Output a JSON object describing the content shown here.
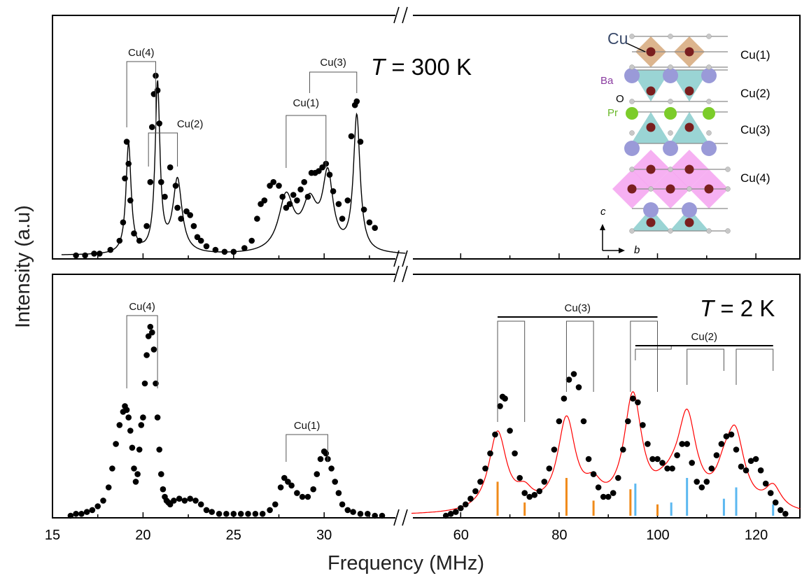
{
  "figure": {
    "ylabel": "Intensity (a.u)",
    "xlabel": "Frequency (MHz)",
    "top_panel_label": {
      "symbol": "T",
      "rest": " = 300 K"
    },
    "bottom_panel_label": {
      "symbol": "T",
      "rest": " = 2 K"
    },
    "x_ticks_left": [
      "15",
      "20",
      "25",
      "30"
    ],
    "x_ticks_right": [
      "60",
      "80",
      "100",
      "120"
    ],
    "inset": {
      "labels": {
        "cu": "Cu",
        "ba": "Ba",
        "o": "O",
        "pr": "Pr",
        "c_axis": "c",
        "b_axis": "b"
      },
      "layers": [
        "Cu(1)",
        "Cu(2)",
        "Cu(3)",
        "Cu(4)"
      ]
    },
    "colors": {
      "data": "#000000",
      "fit_300K": "#000000",
      "fit_2K": "#ff0000",
      "cu3_sticks": "#f08a1a",
      "cu2_sticks": "#5bb8f0",
      "cu_atom": "#7a1f1f",
      "ba_atom": "#9a9ad8",
      "pr_atom": "#7ccc2a",
      "o_atom": "#c8c8c8",
      "cu_polyhedra": "#d6a87a",
      "cu2_polyhedra": "#8fcfcf",
      "cu4_polyhedra": "#f4a2f0",
      "ba_label": "#8a3ca0",
      "pr_label": "#6ab82a",
      "cu_label": "#3a4a6a"
    }
  },
  "chart_data": [
    {
      "type": "scatter",
      "panel": "top",
      "temperature_label": "T = 300 K",
      "xlabel": "Frequency (MHz)",
      "ylabel": "Intensity (a.u)",
      "xlim": [
        15,
        35
      ],
      "ylim": [
        0,
        1.05
      ],
      "y_units": "arbitrary",
      "series": [
        {
          "kind": "points",
          "x": [
            16.3,
            16.8,
            17.3,
            17.6,
            18.2,
            18.7,
            18.9,
            19.0,
            19.1,
            19.2,
            19.3,
            19.5,
            19.8,
            20.2,
            20.4,
            20.5,
            20.6,
            20.7,
            20.8,
            20.9,
            21.0,
            21.2,
            21.5,
            21.8,
            21.9,
            22.1,
            22.4,
            22.6,
            22.8,
            23.0,
            23.2,
            23.5,
            24.0,
            24.5,
            25.0,
            25.6,
            26.0,
            26.3,
            26.5,
            26.7,
            27.0,
            27.2,
            27.5,
            27.7,
            27.9,
            28.1,
            28.3,
            28.5,
            28.7,
            28.9,
            29.1,
            29.3,
            29.5,
            29.7,
            29.9,
            30.1,
            30.3,
            30.5,
            30.8,
            31.0,
            31.3,
            31.5,
            31.7,
            31.8,
            32.0,
            32.2,
            32.5,
            32.8
          ],
          "y": [
            0.0,
            0.0,
            0.01,
            0.01,
            0.03,
            0.08,
            0.18,
            0.42,
            0.62,
            0.5,
            0.3,
            0.12,
            0.08,
            0.16,
            0.4,
            0.7,
            0.88,
            0.98,
            0.9,
            0.72,
            0.4,
            0.32,
            0.48,
            0.38,
            0.26,
            0.2,
            0.24,
            0.22,
            0.16,
            0.1,
            0.08,
            0.05,
            0.03,
            0.02,
            0.02,
            0.04,
            0.08,
            0.2,
            0.28,
            0.3,
            0.38,
            0.4,
            0.38,
            0.32,
            0.26,
            0.28,
            0.33,
            0.3,
            0.36,
            0.4,
            0.32,
            0.45,
            0.45,
            0.46,
            0.48,
            0.5,
            0.44,
            0.35,
            0.28,
            0.2,
            0.3,
            0.65,
            0.82,
            0.84,
            0.62,
            0.25,
            0.18,
            0.15
          ]
        },
        {
          "kind": "fit_line",
          "peaks": [
            {
              "center": 19.2,
              "amplitude": 0.6,
              "width": 0.17
            },
            {
              "center": 20.8,
              "amplitude": 0.92,
              "width": 0.16
            },
            {
              "center": 21.9,
              "amplitude": 0.4,
              "width": 0.3
            },
            {
              "center": 27.9,
              "amplitude": 0.3,
              "width": 0.5
            },
            {
              "center": 29.2,
              "amplitude": 0.25,
              "width": 0.5
            },
            {
              "center": 30.2,
              "amplitude": 0.4,
              "width": 0.35
            },
            {
              "center": 31.8,
              "amplitude": 0.74,
              "width": 0.22
            }
          ]
        }
      ],
      "assignments": [
        {
          "label": "Cu(4)",
          "lines": [
            19.1,
            20.7
          ]
        },
        {
          "label": "Cu(2)",
          "lines": [
            20.3,
            21.9
          ]
        },
        {
          "label": "Cu(1)",
          "lines": [
            27.9,
            30.1
          ]
        },
        {
          "label": "Cu(3)",
          "lines": [
            29.2,
            31.8
          ]
        }
      ]
    },
    {
      "type": "scatter",
      "panel": "bottom-left",
      "temperature_label": "T = 2 K",
      "xlabel": "Frequency (MHz)",
      "xlim": [
        15,
        35
      ],
      "ylim": [
        0,
        1.05
      ],
      "y_units": "arbitrary",
      "series": [
        {
          "kind": "points",
          "x": [
            16.0,
            16.3,
            16.6,
            16.9,
            17.2,
            17.5,
            17.8,
            18.1,
            18.3,
            18.5,
            18.7,
            18.9,
            19.0,
            19.1,
            19.2,
            19.3,
            19.4,
            19.5,
            19.6,
            19.7,
            19.8,
            19.9,
            20.0,
            20.1,
            20.2,
            20.3,
            20.4,
            20.5,
            20.6,
            20.7,
            20.8,
            20.9,
            21.0,
            21.1,
            21.2,
            21.3,
            21.4,
            21.5,
            21.7,
            22.0,
            22.3,
            22.6,
            22.9,
            23.2,
            23.5,
            23.8,
            24.2,
            24.6,
            25.0,
            25.4,
            25.8,
            26.2,
            26.6,
            27.0,
            27.3,
            27.6,
            27.8,
            28.0,
            28.2,
            28.5,
            28.8,
            29.1,
            29.4,
            29.6,
            29.8,
            30.0,
            30.1,
            30.2,
            30.4,
            30.6,
            30.8,
            31.0,
            31.3,
            31.6,
            32.0,
            32.4,
            32.8,
            33.2
          ],
          "y": [
            0.0,
            0.01,
            0.01,
            0.02,
            0.03,
            0.05,
            0.08,
            0.15,
            0.25,
            0.38,
            0.48,
            0.55,
            0.58,
            0.56,
            0.52,
            0.45,
            0.36,
            0.25,
            0.18,
            0.22,
            0.35,
            0.48,
            0.52,
            0.7,
            0.85,
            0.95,
            1.0,
            0.97,
            0.88,
            0.7,
            0.52,
            0.35,
            0.22,
            0.14,
            0.1,
            0.08,
            0.07,
            0.06,
            0.08,
            0.09,
            0.08,
            0.09,
            0.08,
            0.06,
            0.03,
            0.02,
            0.01,
            0.01,
            0.01,
            0.01,
            0.01,
            0.01,
            0.01,
            0.03,
            0.06,
            0.15,
            0.2,
            0.18,
            0.16,
            0.12,
            0.1,
            0.1,
            0.14,
            0.22,
            0.3,
            0.34,
            0.33,
            0.3,
            0.25,
            0.18,
            0.12,
            0.06,
            0.03,
            0.02,
            0.01,
            0.01,
            0.0,
            0.0
          ]
        }
      ],
      "assignments": [
        {
          "label": "Cu(4)",
          "lines": [
            19.1,
            20.8
          ]
        },
        {
          "label": "Cu(1)",
          "lines": [
            27.9,
            30.2
          ]
        }
      ]
    },
    {
      "type": "scatter",
      "panel": "bottom-right",
      "temperature_label": "T = 2 K",
      "xlabel": "Frequency (MHz)",
      "xlim": [
        50,
        130
      ],
      "ylim": [
        0,
        1.05
      ],
      "y_units": "arbitrary",
      "series": [
        {
          "kind": "points",
          "x": [
            57,
            58,
            59,
            60,
            61,
            62,
            63,
            64,
            65,
            66,
            67,
            68,
            68.5,
            69,
            70,
            71,
            72,
            73,
            74,
            75,
            76,
            77,
            78,
            79,
            80,
            81,
            82,
            83,
            84,
            85,
            86,
            87,
            88,
            89,
            90,
            91,
            92,
            93,
            94,
            95,
            96,
            97,
            98,
            99,
            100,
            101,
            102,
            103,
            104,
            105,
            106,
            107,
            108,
            109,
            110,
            111,
            112,
            113,
            114,
            115,
            116,
            117,
            118,
            119,
            120,
            121,
            122,
            123,
            124,
            125,
            126
          ],
          "y": [
            0.0,
            0.01,
            0.02,
            0.04,
            0.06,
            0.09,
            0.13,
            0.18,
            0.25,
            0.33,
            0.43,
            0.58,
            0.63,
            0.62,
            0.45,
            0.33,
            0.2,
            0.12,
            0.1,
            0.11,
            0.13,
            0.18,
            0.25,
            0.35,
            0.5,
            0.62,
            0.72,
            0.75,
            0.68,
            0.5,
            0.3,
            0.22,
            0.15,
            0.1,
            0.1,
            0.12,
            0.2,
            0.35,
            0.5,
            0.62,
            0.6,
            0.48,
            0.38,
            0.3,
            0.3,
            0.28,
            0.25,
            0.25,
            0.32,
            0.38,
            0.38,
            0.28,
            0.18,
            0.15,
            0.18,
            0.25,
            0.32,
            0.38,
            0.42,
            0.43,
            0.35,
            0.26,
            0.24,
            0.29,
            0.3,
            0.24,
            0.17,
            0.12,
            0.07,
            0.03,
            0.01
          ]
        },
        {
          "kind": "fit_line",
          "peaks": [
            {
              "center": 67.5,
              "amplitude": 0.42,
              "width": 2.2
            },
            {
              "center": 73.0,
              "amplitude": 0.08,
              "width": 2.0
            },
            {
              "center": 81.5,
              "amplitude": 0.48,
              "width": 2.2
            },
            {
              "center": 87.0,
              "amplitude": 0.1,
              "width": 2.0
            },
            {
              "center": 95.0,
              "amplitude": 0.6,
              "width": 2.2
            },
            {
              "center": 101.0,
              "amplitude": 0.05,
              "width": 2.0
            },
            {
              "center": 103.0,
              "amplitude": 0.06,
              "width": 2.0
            },
            {
              "center": 106.0,
              "amplitude": 0.48,
              "width": 2.3
            },
            {
              "center": 113.5,
              "amplitude": 0.12,
              "width": 2.0
            },
            {
              "center": 115.8,
              "amplitude": 0.38,
              "width": 2.3
            },
            {
              "center": 123.5,
              "amplitude": 0.12,
              "width": 2.0
            }
          ]
        },
        {
          "kind": "sticks",
          "name": "Cu(3)",
          "x": [
            67.5,
            73.0,
            81.5,
            87.0,
            94.5,
            100.0
          ],
          "y": [
            0.18,
            0.07,
            0.2,
            0.08,
            0.14,
            0.06
          ]
        },
        {
          "kind": "sticks",
          "name": "Cu(2)",
          "x": [
            95.5,
            102.8,
            106.0,
            113.5,
            116.0,
            123.5
          ],
          "y": [
            0.17,
            0.07,
            0.2,
            0.09,
            0.15,
            0.06
          ]
        }
      ],
      "assignments": [
        {
          "label": "Cu(3)",
          "group": [
            67.5,
            100.0
          ],
          "pairs": [
            [
              67.5,
              73.0
            ],
            [
              81.5,
              87.0
            ],
            [
              94.5,
              100.0
            ]
          ]
        },
        {
          "label": "Cu(2)",
          "group": [
            95.5,
            123.5
          ],
          "pairs": [
            [
              95.5,
              102.8
            ],
            [
              106.0,
              113.5
            ],
            [
              116.0,
              123.5
            ]
          ]
        }
      ]
    }
  ]
}
